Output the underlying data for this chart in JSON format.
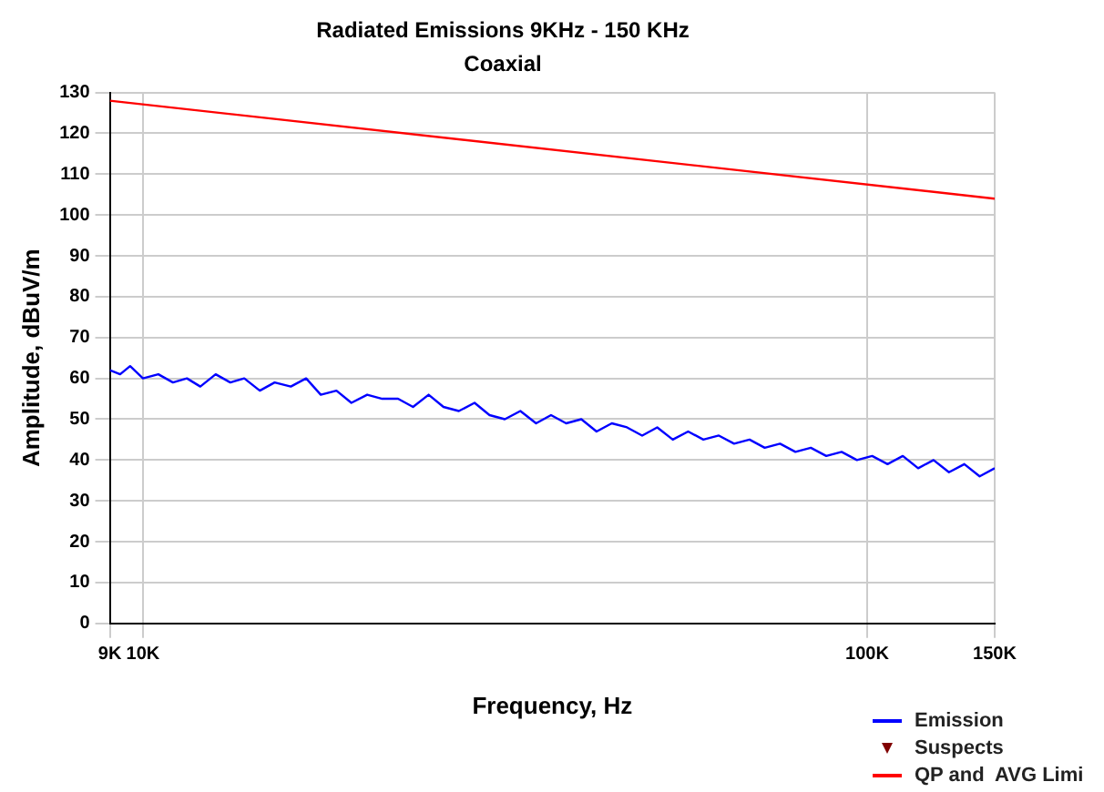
{
  "chart_data": {
    "type": "line",
    "title": "Radiated Emissions 9KHz - 150 KHz",
    "subtitle": "Coaxial",
    "xlabel": "Frequency, Hz",
    "ylabel": "Amplitude, dBuV/m",
    "log": "x",
    "xlim": [
      9000,
      150000
    ],
    "xticks": [
      {
        "value": 9000,
        "label": "9K"
      },
      {
        "value": 10000,
        "label": "10K"
      },
      {
        "value": 100000,
        "label": "100K"
      },
      {
        "value": 150000,
        "label": "150K"
      }
    ],
    "ylim": [
      0,
      130
    ],
    "yticks": [
      0,
      10,
      20,
      30,
      40,
      50,
      60,
      70,
      80,
      90,
      100,
      110,
      120,
      130
    ],
    "grid": true,
    "legend": "bottom right",
    "marker": "none",
    "line_style": "solid",
    "series": [
      {
        "name": "Emission",
        "color": "#0000ff",
        "x": [
          9000,
          9300,
          9600,
          10000,
          10500,
          11000,
          11500,
          12000,
          12600,
          13200,
          13800,
          14500,
          15200,
          16000,
          16800,
          17600,
          18500,
          19400,
          20400,
          21400,
          22500,
          23600,
          24800,
          26000,
          27300,
          28700,
          30100,
          31600,
          33200,
          34900,
          36600,
          38400,
          40300,
          42300,
          44400,
          46600,
          48900,
          51300,
          53900,
          56600,
          59400,
          62400,
          65500,
          68800,
          72200,
          75800,
          79600,
          83600,
          87800,
          92200,
          96800,
          101600,
          106700,
          112000,
          117600,
          123500,
          129700,
          136200,
          143000,
          150000
        ],
        "values": [
          62,
          61,
          63,
          60,
          61,
          59,
          60,
          58,
          61,
          59,
          60,
          57,
          59,
          58,
          60,
          56,
          57,
          54,
          56,
          55,
          55,
          53,
          56,
          53,
          52,
          54,
          51,
          50,
          52,
          49,
          51,
          49,
          50,
          47,
          49,
          48,
          46,
          48,
          45,
          47,
          45,
          46,
          44,
          45,
          43,
          44,
          42,
          43,
          41,
          42,
          40,
          41,
          39,
          41,
          38,
          40,
          37,
          39,
          36,
          38
        ]
      },
      {
        "name": "Suspects",
        "color": "#800000",
        "type": "scatter",
        "marker": "triangle"
      },
      {
        "name": "QP and  AVG Limi",
        "color": "#ff0000",
        "x": [
          9000,
          150000
        ],
        "values": [
          128,
          104
        ]
      }
    ]
  }
}
